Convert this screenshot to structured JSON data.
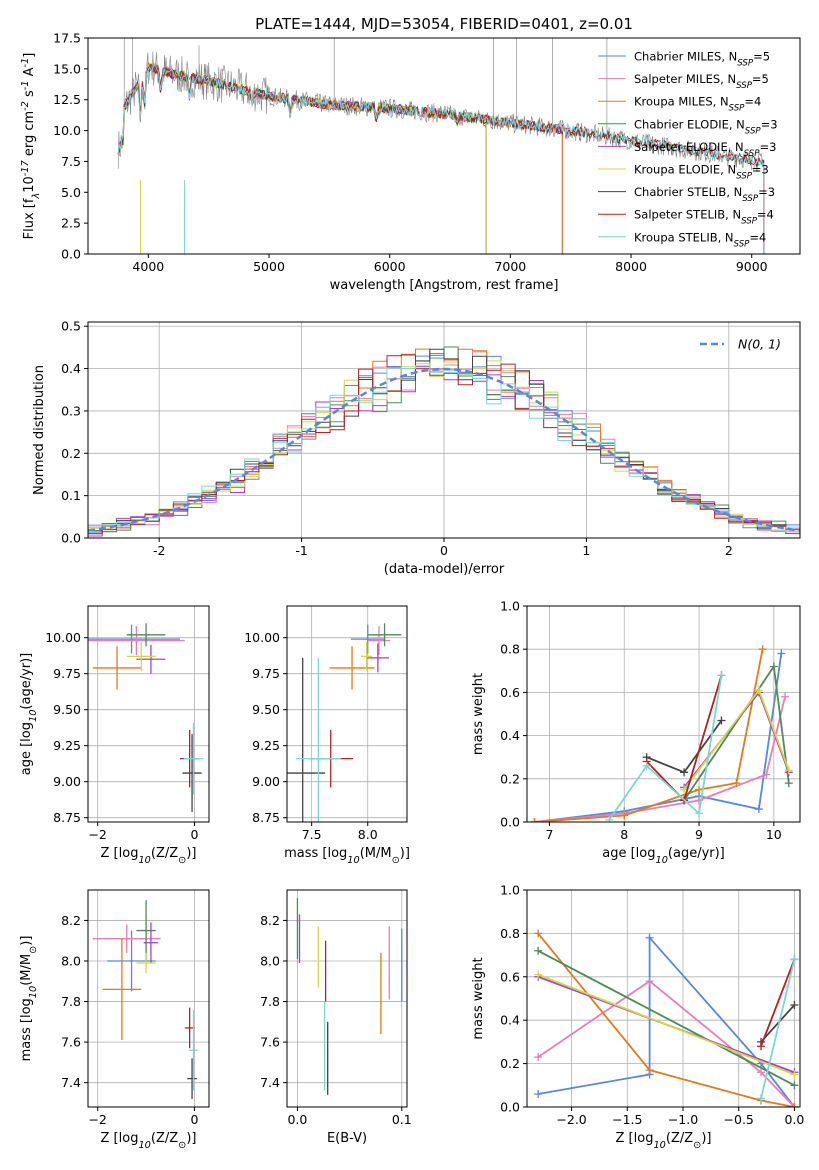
{
  "title": "PLATE=1444, MJD=53054, FIBERID=0401, z=0.01",
  "colors": {
    "Chabrier MILES": "#5b87d9",
    "Salpeter MILES": "#e87db8",
    "Kroupa MILES": "#e07b20",
    "Chabrier ELODIE": "#4f8a5a",
    "Salpeter ELODIE": "#a642c4",
    "Kroupa ELODIE": "#d4d64a",
    "Chabrier STELIB": "#444444",
    "Salpeter STELIB": "#b22222",
    "Kroupa STELIB": "#7dd6d6",
    "data": "#808080",
    "normal": "#5b87d9"
  },
  "chart_data": [
    {
      "type": "line",
      "xlabel": "wavelength [Angstrom, rest frame]",
      "ylabel": "Flux [f$_\\lambda$10$^{-17}$ erg cm$^{-2}$ s$^{-1}$ A$^{-1}$]",
      "xlim": [
        3500,
        9400
      ],
      "ylim": [
        0,
        17.5
      ],
      "xticks": [
        4000,
        5000,
        6000,
        7000,
        8000,
        9000
      ],
      "yticks": [
        "0.0",
        "2.5",
        "5.0",
        "7.5",
        "10.0",
        "12.5",
        "15.0",
        "17.5"
      ],
      "legend_position": "top-right",
      "legend": [
        "Chabrier MILES, N$_{SSP}$=5",
        "Salpeter MILES, N$_{SSP}$=5",
        "Kroupa MILES, N$_{SSP}$=4",
        "Chabrier ELODIE, N$_{SSP}$=3",
        "Salpeter ELODIE, N$_{SSP}$=3",
        "Kroupa ELODIE, N$_{SSP}$=3",
        "Chabrier STELIB, N$_{SSP}$=3",
        "Salpeter STELIB, N$_{SSP}$=4",
        "Kroupa STELIB, N$_{SSP}$=4"
      ],
      "continuum": {
        "x": [
          3750,
          3900,
          4000,
          4200,
          4500,
          5000,
          5500,
          6000,
          6500,
          7000,
          7500,
          8000,
          8500,
          9000,
          9100
        ],
        "y": [
          11.0,
          13.5,
          15.2,
          14.6,
          14.0,
          12.8,
          12.1,
          11.8,
          11.3,
          10.6,
          10.0,
          9.2,
          8.4,
          7.6,
          7.4
        ]
      },
      "model_spans": [
        {
          "model": "Chabrier MILES",
          "x": [
            3750,
            7430
          ]
        },
        {
          "model": "Salpeter MILES",
          "x": [
            3750,
            7430
          ]
        },
        {
          "model": "Kroupa MILES",
          "x": [
            3750,
            7430
          ]
        },
        {
          "model": "Chabrier ELODIE",
          "x": [
            3750,
            6800
          ]
        },
        {
          "model": "Salpeter ELODIE",
          "x": [
            3750,
            6800
          ]
        },
        {
          "model": "Kroupa ELODIE",
          "x": [
            3750,
            6800
          ]
        },
        {
          "model": "Chabrier STELIB",
          "x": [
            3750,
            9100
          ]
        },
        {
          "model": "Salpeter STELIB",
          "x": [
            3750,
            9100
          ]
        },
        {
          "model": "Kroupa STELIB",
          "x": [
            3750,
            9100
          ]
        }
      ]
    },
    {
      "type": "histogram",
      "xlabel": "(data-model)/error",
      "ylabel": "Normed distribution",
      "xlim": [
        -2.5,
        2.5
      ],
      "ylim": [
        0,
        0.51
      ],
      "xticks": [
        -2,
        -1,
        0,
        1,
        2
      ],
      "yticks": [
        "0.0",
        "0.1",
        "0.2",
        "0.3",
        "0.4",
        "0.5"
      ],
      "legend_position": "top-right",
      "legend": [
        "$\\mathcal{N}(0, 1)$"
      ],
      "bin_width": 0.1,
      "peak_values": [
        0.43,
        0.42,
        0.45,
        0.41,
        0.4,
        0.42,
        0.38,
        0.39,
        0.41,
        0.47
      ]
    },
    {
      "type": "scatter",
      "xlabel": "Z [log$_{10}$(Z/Z$_\\odot$)]",
      "ylabel": "age  [log$_{10}$(age/yr)]",
      "xlim": [
        -2.2,
        0.3
      ],
      "ylim": [
        8.72,
        10.22
      ],
      "xticks": [
        "−2",
        "0"
      ],
      "yticks": [
        "8.75",
        "9.00",
        "9.25",
        "9.50",
        "9.75",
        "10.00"
      ],
      "points": [
        {
          "model": "Chabrier MILES",
          "x": -1.3,
          "y": 9.99,
          "xerr": 1.0,
          "yerr": 0.1
        },
        {
          "model": "Salpeter MILES",
          "x": -1.2,
          "y": 9.98,
          "xerr": 1.0,
          "yerr": 0.1
        },
        {
          "model": "Kroupa MILES",
          "x": -1.6,
          "y": 9.79,
          "xerr": 0.5,
          "yerr": 0.15
        },
        {
          "model": "Chabrier ELODIE",
          "x": -1.0,
          "y": 10.02,
          "xerr": 0.4,
          "yerr": 0.08
        },
        {
          "model": "Salpeter ELODIE",
          "x": -0.9,
          "y": 9.85,
          "xerr": 0.3,
          "yerr": 0.1
        },
        {
          "model": "Kroupa ELODIE",
          "x": -1.1,
          "y": 9.87,
          "xerr": 0.3,
          "yerr": 0.1
        },
        {
          "model": "Chabrier STELIB",
          "x": -0.05,
          "y": 9.06,
          "xerr": 0.2,
          "yerr": 0.27
        },
        {
          "model": "Salpeter STELIB",
          "x": -0.1,
          "y": 9.16,
          "xerr": 0.2,
          "yerr": 0.2
        },
        {
          "model": "Kroupa STELIB",
          "x": -0.02,
          "y": 9.16,
          "xerr": 0.2,
          "yerr": 0.25
        }
      ]
    },
    {
      "type": "scatter",
      "xlabel": "mass [log$_{10}$(M/M$_\\odot$)]",
      "ylabel": "",
      "xlim": [
        7.28,
        8.35
      ],
      "ylim": [
        8.72,
        10.22
      ],
      "xticks": [
        "7.5",
        "8.0"
      ],
      "yticks": [
        "8.75",
        "9.00",
        "9.25",
        "9.50",
        "9.75",
        "10.00"
      ],
      "points": [
        {
          "model": "Chabrier MILES",
          "x": 8.0,
          "y": 9.99,
          "xerr": 0.15,
          "yerr": 0.1
        },
        {
          "model": "Salpeter MILES",
          "x": 8.1,
          "y": 9.98,
          "xerr": 0.1,
          "yerr": 0.1
        },
        {
          "model": "Kroupa MILES",
          "x": 7.86,
          "y": 9.79,
          "xerr": 0.2,
          "yerr": 0.15
        },
        {
          "model": "Chabrier ELODIE",
          "x": 8.15,
          "y": 10.02,
          "xerr": 0.15,
          "yerr": 0.08
        },
        {
          "model": "Salpeter ELODIE",
          "x": 8.09,
          "y": 9.86,
          "xerr": 0.1,
          "yerr": 0.1
        },
        {
          "model": "Kroupa ELODIE",
          "x": 7.99,
          "y": 9.87,
          "xerr": 0.05,
          "yerr": 0.1
        },
        {
          "model": "Chabrier STELIB",
          "x": 7.42,
          "y": 9.06,
          "xerr": 0.2,
          "yerr": 0.8
        },
        {
          "model": "Salpeter STELIB",
          "x": 7.67,
          "y": 9.16,
          "xerr": 0.2,
          "yerr": 0.2
        },
        {
          "model": "Kroupa STELIB",
          "x": 7.56,
          "y": 9.16,
          "xerr": 0.2,
          "yerr": 0.7
        }
      ]
    },
    {
      "type": "line",
      "xlabel": "age  [log$_{10}$(age/yr)]",
      "ylabel": "mass weight",
      "xlim": [
        6.7,
        10.35
      ],
      "ylim": [
        0,
        1.0
      ],
      "xticks": [
        "7",
        "8",
        "9",
        "10"
      ],
      "yticks": [
        "0.0",
        "0.2",
        "0.4",
        "0.6",
        "0.8",
        "1.0"
      ],
      "series": [
        {
          "model": "Chabrier MILES",
          "x": [
            6.8,
            8.0,
            9.0,
            9.8,
            10.1
          ],
          "y": [
            0.0,
            0.05,
            0.12,
            0.06,
            0.78
          ]
        },
        {
          "model": "Salpeter MILES",
          "x": [
            6.8,
            8.0,
            9.0,
            9.9,
            10.15
          ],
          "y": [
            0.0,
            0.04,
            0.1,
            0.22,
            0.58
          ]
        },
        {
          "model": "Kroupa MILES",
          "x": [
            6.8,
            8.0,
            9.0,
            9.5,
            9.85
          ],
          "y": [
            0.0,
            0.03,
            0.15,
            0.18,
            0.8
          ]
        },
        {
          "model": "Chabrier ELODIE",
          "x": [
            8.8,
            10.0,
            10.2
          ],
          "y": [
            0.1,
            0.72,
            0.18
          ]
        },
        {
          "model": "Salpeter ELODIE",
          "x": [
            8.8,
            9.8,
            10.2
          ],
          "y": [
            0.16,
            0.6,
            0.23
          ]
        },
        {
          "model": "Kroupa ELODIE",
          "x": [
            8.8,
            9.8,
            10.2
          ],
          "y": [
            0.15,
            0.61,
            0.24
          ]
        },
        {
          "model": "Chabrier STELIB",
          "x": [
            8.3,
            8.8,
            9.3
          ],
          "y": [
            0.3,
            0.23,
            0.47
          ]
        },
        {
          "model": "Salpeter STELIB",
          "x": [
            8.3,
            8.8,
            9.3
          ],
          "y": [
            0.28,
            0.1,
            0.68
          ]
        },
        {
          "model": "Kroupa STELIB",
          "x": [
            7.8,
            8.3,
            9.0,
            9.3
          ],
          "y": [
            0.01,
            0.26,
            0.04,
            0.68
          ]
        }
      ]
    },
    {
      "type": "scatter",
      "xlabel": "Z [log$_{10}$(Z/Z$_\\odot$)]",
      "ylabel": "mass [log$_{10}$(M/M$_\\odot$)]",
      "xlim": [
        -2.2,
        0.3
      ],
      "ylim": [
        7.28,
        8.35
      ],
      "xticks": [
        "−2",
        "0"
      ],
      "yticks": [
        "7.4",
        "7.6",
        "7.8",
        "8.0",
        "8.2"
      ],
      "points": [
        {
          "model": "Chabrier MILES",
          "x": -1.3,
          "y": 8.0,
          "xerr": 0.5,
          "yerr": 0.15
        },
        {
          "model": "Salpeter MILES",
          "x": -1.4,
          "y": 8.11,
          "xerr": 0.7,
          "yerr": 0.07
        },
        {
          "model": "Kroupa MILES",
          "x": -1.5,
          "y": 7.86,
          "xerr": 0.4,
          "yerr": 0.25
        },
        {
          "model": "Chabrier ELODIE",
          "x": -1.0,
          "y": 8.15,
          "xerr": 0.2,
          "yerr": 0.15
        },
        {
          "model": "Salpeter ELODIE",
          "x": -0.9,
          "y": 8.09,
          "xerr": 0.15,
          "yerr": 0.1
        },
        {
          "model": "Kroupa ELODIE",
          "x": -1.0,
          "y": 7.99,
          "xerr": 0.2,
          "yerr": 0.05
        },
        {
          "model": "Chabrier STELIB",
          "x": -0.05,
          "y": 7.42,
          "xerr": 0.1,
          "yerr": 0.1
        },
        {
          "model": "Salpeter STELIB",
          "x": -0.1,
          "y": 7.67,
          "xerr": 0.1,
          "yerr": 0.1
        },
        {
          "model": "Kroupa STELIB",
          "x": -0.02,
          "y": 7.56,
          "xerr": 0.1,
          "yerr": 0.2
        }
      ]
    },
    {
      "type": "scatter",
      "xlabel": "E(B-V)",
      "ylabel": "",
      "xlim": [
        -0.01,
        0.105
      ],
      "ylim": [
        7.28,
        8.35
      ],
      "xticks": [
        "0.0",
        "0.1"
      ],
      "yticks": [
        "7.4",
        "7.6",
        "7.8",
        "8.0",
        "8.2"
      ],
      "points": [
        {
          "model": "Chabrier MILES",
          "x": 0.1,
          "y": 7.98,
          "yerr": 0.18
        },
        {
          "model": "Salpeter MILES",
          "x": 0.088,
          "y": 7.99,
          "yerr": 0.18
        },
        {
          "model": "Kroupa MILES",
          "x": 0.08,
          "y": 7.84,
          "yerr": 0.2
        },
        {
          "model": "Chabrier ELODIE",
          "x": 0.0,
          "y": 8.16,
          "yerr": 0.15
        },
        {
          "model": "Salpeter ELODIE",
          "x": 0.002,
          "y": 8.11,
          "yerr": 0.12
        },
        {
          "model": "Kroupa ELODIE",
          "x": 0.02,
          "y": 8.02,
          "yerr": 0.15
        },
        {
          "model": "Chabrier STELIB",
          "x": 0.029,
          "y": 7.52,
          "yerr": 0.18
        },
        {
          "model": "Salpeter STELIB",
          "x": 0.027,
          "y": 7.95,
          "yerr": 0.15
        },
        {
          "model": "Kroupa STELIB",
          "x": 0.026,
          "y": 7.58,
          "yerr": 0.22
        }
      ]
    },
    {
      "type": "line",
      "xlabel": "Z [log$_{10}$(Z/Z$_\\odot$)]",
      "ylabel": "mass weight",
      "xlim": [
        -2.4,
        0.05
      ],
      "ylim": [
        0,
        1.0
      ],
      "xticks": [
        "−2.0",
        "−1.5",
        "−1.0",
        "−0.5",
        "0.0"
      ],
      "yticks": [
        "0.0",
        "0.2",
        "0.4",
        "0.6",
        "0.8",
        "1.0"
      ],
      "series": [
        {
          "model": "Chabrier MILES",
          "x": [
            -2.3,
            -1.3,
            -1.3,
            -0.3,
            0.0
          ],
          "y": [
            0.06,
            0.15,
            0.78,
            0.2,
            0.0
          ]
        },
        {
          "model": "Salpeter MILES",
          "x": [
            -2.3,
            -1.3,
            -0.3,
            0.0
          ],
          "y": [
            0.23,
            0.58,
            0.16,
            0.0
          ]
        },
        {
          "model": "Kroupa MILES",
          "x": [
            -2.3,
            -1.3,
            -0.3,
            0.0
          ],
          "y": [
            0.8,
            0.17,
            0.03,
            0.0
          ]
        },
        {
          "model": "Chabrier ELODIE",
          "x": [
            -2.3,
            0.0
          ],
          "y": [
            0.72,
            0.1
          ]
        },
        {
          "model": "Salpeter ELODIE",
          "x": [
            -2.3,
            0.0
          ],
          "y": [
            0.6,
            0.16
          ]
        },
        {
          "model": "Kroupa ELODIE",
          "x": [
            -2.3,
            0.0
          ],
          "y": [
            0.61,
            0.15
          ]
        },
        {
          "model": "Chabrier STELIB",
          "x": [
            -0.3,
            0.0
          ],
          "y": [
            0.3,
            0.47
          ]
        },
        {
          "model": "Salpeter STELIB",
          "x": [
            -0.3,
            0.0
          ],
          "y": [
            0.28,
            0.68
          ]
        },
        {
          "model": "Kroupa STELIB",
          "x": [
            -0.3,
            0.0
          ],
          "y": [
            0.04,
            0.68
          ]
        }
      ]
    }
  ]
}
